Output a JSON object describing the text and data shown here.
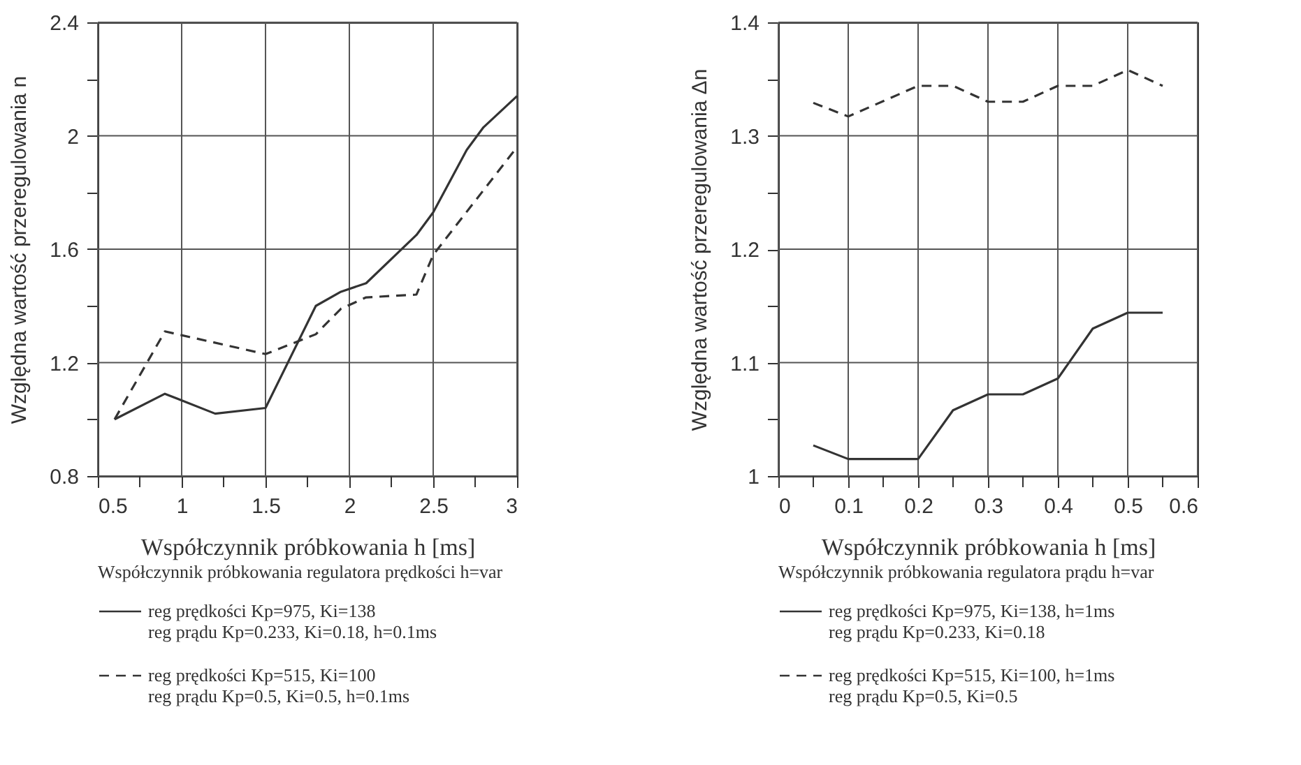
{
  "chart_data": [
    {
      "type": "line",
      "xlabel": "Współczynnik próbkowania h [ms]",
      "ylabel": "Względna wartość przeregulowania n",
      "legend_title": "Współczynnik próbkowania regulatora prędkości h=var",
      "legend": "bottom",
      "grid": true,
      "xlim": [
        0.5,
        3
      ],
      "ylim": [
        0.8,
        2.4
      ],
      "xticks": [
        0.5,
        {
          "value": 0.75,
          "label": null
        },
        1,
        {
          "value": 1.25,
          "label": null
        },
        1.5,
        {
          "value": 1.75,
          "label": null
        },
        2,
        {
          "value": 2.25,
          "label": null
        },
        2.5,
        {
          "value": 2.75,
          "label": null
        },
        3
      ],
      "yticks": [
        0.8,
        {
          "value": 1.0,
          "label": null
        },
        1.2,
        {
          "value": 1.4,
          "label": null
        },
        1.6,
        {
          "value": 1.8,
          "label": null
        },
        2,
        {
          "value": 2.2,
          "label": null
        },
        2.4
      ],
      "series": [
        {
          "name": "reg prędkości Kp=975, Ki=138\nreg prądu Kp=0.233, Ki=0.18, h=0.1ms",
          "color": "#333333",
          "line_style": "solid",
          "x": [
            0.6,
            0.9,
            1.2,
            1.5,
            1.8,
            1.95,
            2.1,
            2.4,
            2.5,
            2.7,
            2.8,
            3.0
          ],
          "values": [
            1.0,
            1.09,
            1.02,
            1.04,
            1.4,
            1.45,
            1.48,
            1.65,
            1.73,
            1.95,
            2.03,
            2.14
          ]
        },
        {
          "name": "reg prędkości Kp=515, Ki=100\nreg prądu Kp=0.5, Ki=0.5, h=0.1ms",
          "color": "#333333",
          "line_style": "dashed",
          "x": [
            0.6,
            0.9,
            1.5,
            1.8,
            1.95,
            2.1,
            2.4,
            2.5,
            3.0
          ],
          "values": [
            1.0,
            1.31,
            1.23,
            1.3,
            1.39,
            1.43,
            1.44,
            1.58,
            1.96
          ]
        }
      ]
    },
    {
      "type": "line",
      "xlabel": "Współczynnik próbkowania h [ms]",
      "ylabel": "Względna wartość przeregulowania Δn",
      "legend_title": "Współczynnik próbkowania regulatora prądu h=var",
      "legend": "bottom",
      "grid": true,
      "xlim": [
        0,
        0.6
      ],
      "ylim": [
        1,
        1.4
      ],
      "xticks": [
        0,
        {
          "value": 0.05,
          "label": null
        },
        0.1,
        {
          "value": 0.15,
          "label": null
        },
        0.2,
        {
          "value": 0.25,
          "label": null
        },
        0.3,
        {
          "value": 0.35,
          "label": null
        },
        0.4,
        {
          "value": 0.45,
          "label": null
        },
        0.5,
        {
          "value": 0.55,
          "label": null
        },
        0.6
      ],
      "yticks": [
        1,
        {
          "value": 1.05,
          "label": null
        },
        1.1,
        {
          "value": 1.15,
          "label": null
        },
        1.2,
        {
          "value": 1.25,
          "label": null
        },
        1.3,
        {
          "value": 1.35,
          "label": null
        },
        1.4
      ],
      "series": [
        {
          "name": "reg prędkości Kp=975, Ki=138, h=1ms\nreg prądu Kp=0.233, Ki=0.18",
          "color": "#333333",
          "line_style": "solid",
          "x": [
            0.05,
            0.1,
            0.2,
            0.25,
            0.3,
            0.35,
            0.4,
            0.45,
            0.5,
            0.55
          ],
          "values": [
            1.027,
            1.015,
            1.015,
            1.058,
            1.072,
            1.072,
            1.086,
            1.13,
            1.144,
            1.144
          ]
        },
        {
          "name": "reg prędkości Kp=515, Ki=100, h=1ms\nreg prądu Kp=0.5, Ki=0.5",
          "color": "#333333",
          "line_style": "dashed",
          "x": [
            0.05,
            0.1,
            0.2,
            0.25,
            0.3,
            0.35,
            0.4,
            0.45,
            0.5,
            0.55
          ],
          "values": [
            1.329,
            1.317,
            1.344,
            1.344,
            1.33,
            1.33,
            1.344,
            1.344,
            1.358,
            1.344
          ]
        }
      ]
    }
  ]
}
